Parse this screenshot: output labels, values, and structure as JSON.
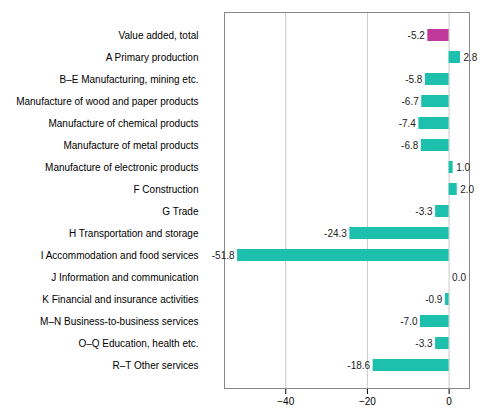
{
  "chart_data": {
    "type": "bar",
    "orientation": "horizontal",
    "categories": [
      "Value added, total",
      "A Primary production",
      "B–E Manufacturing, mining etc.",
      "Manufacture of wood and paper products",
      "Manufacture of chemical products",
      "Manufacture of metal products",
      "Manufacture of electronic products",
      "F Construction",
      "G Trade",
      "H Transportation and storage",
      "I Accommodation and food services",
      "J Information and communication",
      "K Financial and insurance activities",
      "M–N Business-to-business services",
      "O–Q Education, health etc.",
      "R–T Other services"
    ],
    "values": [
      -5.2,
      2.8,
      -5.8,
      -6.7,
      -7.4,
      -6.8,
      1.0,
      2.0,
      -3.3,
      -24.3,
      -51.8,
      0.0,
      -0.9,
      -7.0,
      -3.3,
      -18.6
    ],
    "value_labels": [
      "-5.2",
      "2.8",
      "-5.8",
      "-6.7",
      "-7.4",
      "-6.8",
      "1.0",
      "2.0",
      "-3.3",
      "-24.3",
      "-51.8",
      "0.0",
      "-0.9",
      "-7.0",
      "-3.3",
      "-18.6"
    ],
    "colors": [
      "#c0389a",
      "#1dbfad",
      "#1dbfad",
      "#1dbfad",
      "#1dbfad",
      "#1dbfad",
      "#1dbfad",
      "#1dbfad",
      "#1dbfad",
      "#1dbfad",
      "#1dbfad",
      "#1dbfad",
      "#1dbfad",
      "#1dbfad",
      "#1dbfad",
      "#1dbfad"
    ],
    "xlim": [
      -55,
      5
    ],
    "xticks": [
      -40,
      -20,
      0
    ],
    "grid": true,
    "data_labels": true
  }
}
